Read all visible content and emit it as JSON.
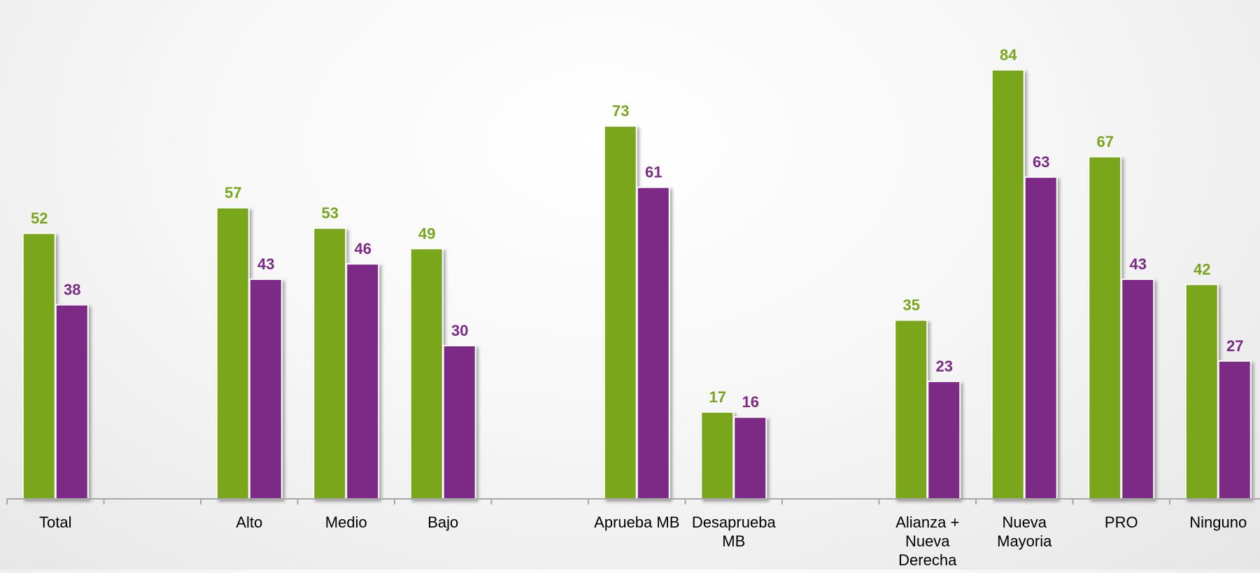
{
  "chart_data": {
    "type": "bar",
    "title": "",
    "xlabel": "",
    "ylabel": "",
    "ylim": [
      0,
      84
    ],
    "grid": false,
    "legend": "none",
    "categories": [
      [
        "Total"
      ],
      [],
      [
        "Alto"
      ],
      [
        "Medio"
      ],
      [
        "Bajo"
      ],
      [],
      [
        "Aprueba MB"
      ],
      [
        "Desaprueba",
        "MB"
      ],
      [],
      [
        "Alianza +",
        "Nueva",
        "Derecha"
      ],
      [
        "Nueva",
        "Mayoria"
      ],
      [
        "PRO"
      ],
      [
        "Ninguno"
      ]
    ],
    "series": [
      {
        "color": "#7aa61e",
        "values": [
          52,
          null,
          57,
          53,
          49,
          null,
          73,
          17,
          null,
          35,
          84,
          67,
          42
        ]
      },
      {
        "color": "#7b2a85",
        "values": [
          38,
          null,
          43,
          46,
          30,
          null,
          61,
          16,
          null,
          23,
          63,
          43,
          27
        ]
      }
    ],
    "axis_color": "#a6a6a6"
  }
}
